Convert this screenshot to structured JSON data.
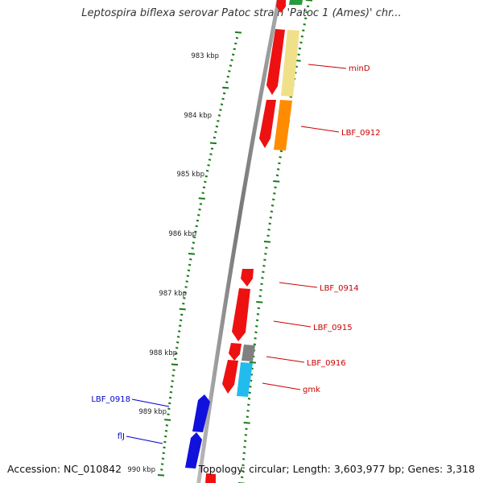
{
  "title": "Leptospira biflexa serovar Patoc strain 'Patoc 1 (Ames)' chr...",
  "accession": "Accession: NC_010842",
  "topology": "Topology: circular; Length: 3,603,977 bp; Genes: 3,318",
  "scale_labels": [
    "983 kbp",
    "984 kbp",
    "985 kbp",
    "986 kbp",
    "987 kbp",
    "988 kbp",
    "989 kbp",
    "990 kbp"
  ],
  "gene_labels": [
    {
      "name": "minD",
      "color": "#cc0000"
    },
    {
      "name": "LBF_0912",
      "color": "#cc0000"
    },
    {
      "name": "LBF_0914",
      "color": "#cc0000"
    },
    {
      "name": "LBF_0915",
      "color": "#cc0000"
    },
    {
      "name": "LBF_0916",
      "color": "#cc0000"
    },
    {
      "name": "gmk",
      "color": "#cc0000"
    },
    {
      "name": "LBF_0918",
      "color": "#0000cc"
    },
    {
      "name": "flJ",
      "color": "#0000cc"
    }
  ],
  "colors": {
    "backbone": "#888888",
    "tick": "#1a7a1a",
    "forward_gene": "#ee1111",
    "reverse_gene": "#1111dd",
    "cog_yellow": "#f0e08a",
    "cog_orange": "#ff8c00",
    "cog_gray": "#808080",
    "cog_cyan": "#22bbee",
    "cog_green": "#2a9a3a"
  }
}
